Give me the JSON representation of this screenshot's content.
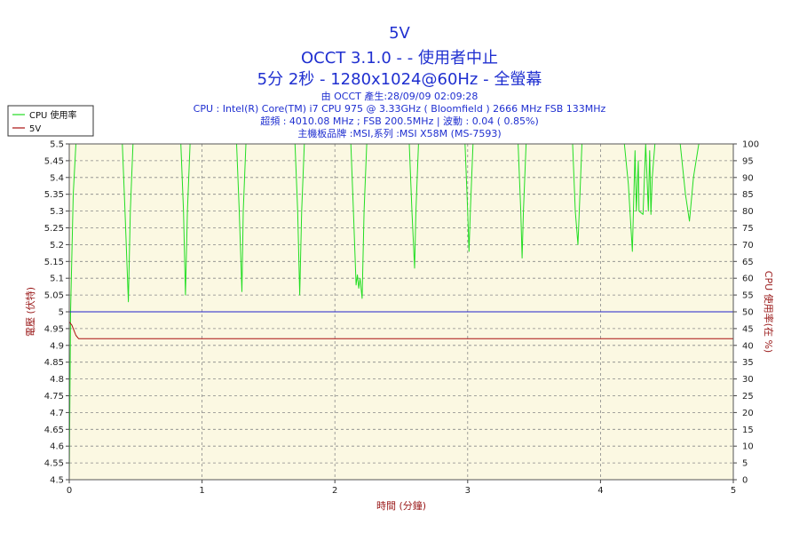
{
  "header": {
    "title_line1": "5V",
    "title_line2": "OCCT 3.1.0 -  - 使用者中止",
    "title_line3": "5分 2秒 - 1280x1024@60Hz - 全螢幕",
    "info_lines": [
      "由 OCCT 產生:28/09/09 02:09:28",
      "CPU : Intel(R) Core(TM) i7 CPU 975 @ 3.33GHz ( Bloomfield ) 2666 MHz FSB 133MHz",
      "超頻 : 4010.08 MHz ; FSB 200.5MHz | 波動 : 0.04 ( 0.85%)",
      "主機板品牌 :MSI,系列 :MSI X58M (MS-7593)"
    ]
  },
  "colors": {
    "cpu": "#22dd22",
    "volt": "#aa1111",
    "ref": "#2222cc",
    "plot_bg": "#fbf8e2",
    "grid": "#888888"
  },
  "chart_data": {
    "type": "line",
    "xlabel": "時間 (分鐘)",
    "ylabel_left": "電壓 (伏特)",
    "ylabel_right": "CPU 使用率(在 %)",
    "xlim": [
      0,
      5
    ],
    "ylim_left": [
      4.5,
      5.5
    ],
    "ylim_right": [
      0,
      100
    ],
    "x_ticks": [
      "0",
      "1",
      "2",
      "3",
      "4",
      "5"
    ],
    "y_left_ticks": [
      "4.5",
      "4.55",
      "4.6",
      "4.65",
      "4.7",
      "4.75",
      "4.8",
      "4.85",
      "4.9",
      "4.95",
      "5",
      "5.05",
      "5.1",
      "5.15",
      "5.2",
      "5.25",
      "5.3",
      "5.35",
      "5.4",
      "5.45",
      "5.5"
    ],
    "y_right_ticks": [
      "0",
      "5",
      "10",
      "15",
      "20",
      "25",
      "30",
      "35",
      "40",
      "45",
      "50",
      "55",
      "60",
      "65",
      "70",
      "75",
      "80",
      "85",
      "90",
      "95",
      "100"
    ],
    "grid": true,
    "legend": "top-left",
    "series": [
      {
        "name": "CPU 使用率",
        "axis": "right",
        "x": [
          0.0,
          0.01,
          0.03,
          0.05,
          0.07,
          0.4,
          0.42,
          0.445,
          0.46,
          0.48,
          0.84,
          0.86,
          0.875,
          0.89,
          0.91,
          1.26,
          1.28,
          1.3,
          1.31,
          1.33,
          1.7,
          1.72,
          1.735,
          1.75,
          1.77,
          2.12,
          2.14,
          2.16,
          2.17,
          2.18,
          2.19,
          2.205,
          2.22,
          2.24,
          2.56,
          2.58,
          2.6,
          2.61,
          2.63,
          2.98,
          3.0,
          3.01,
          3.02,
          3.04,
          3.38,
          3.4,
          3.41,
          3.42,
          3.44,
          3.79,
          3.81,
          3.83,
          3.84,
          3.86,
          4.18,
          4.21,
          4.24,
          4.26,
          4.27,
          4.285,
          4.29,
          4.32,
          4.34,
          4.36,
          4.37,
          4.38,
          4.39,
          4.41,
          4.6,
          4.64,
          4.67,
          4.7,
          4.74,
          4.98,
          5.0
        ],
        "values": [
          0,
          50,
          85,
          100,
          100,
          100,
          80,
          53,
          80,
          100,
          100,
          80,
          55,
          80,
          100,
          100,
          80,
          56,
          80,
          100,
          100,
          80,
          55,
          80,
          100,
          100,
          80,
          58,
          61,
          57,
          60,
          54,
          80,
          100,
          100,
          80,
          63,
          80,
          100,
          100,
          80,
          68,
          80,
          100,
          100,
          80,
          66,
          80,
          100,
          100,
          80,
          70,
          80,
          100,
          100,
          88,
          68,
          98,
          80,
          95,
          80,
          79,
          100,
          80,
          98,
          79,
          90,
          100,
          100,
          85,
          77,
          90,
          100,
          100,
          100
        ]
      },
      {
        "name": "5V",
        "axis": "left",
        "x": [
          0.0,
          0.02,
          0.05,
          0.07,
          5.0
        ],
        "values": [
          4.97,
          4.96,
          4.93,
          4.92,
          4.92
        ]
      },
      {
        "name": "",
        "axis": "left",
        "x": [
          0.0,
          5.0
        ],
        "values": [
          5.0,
          5.0
        ]
      }
    ]
  }
}
